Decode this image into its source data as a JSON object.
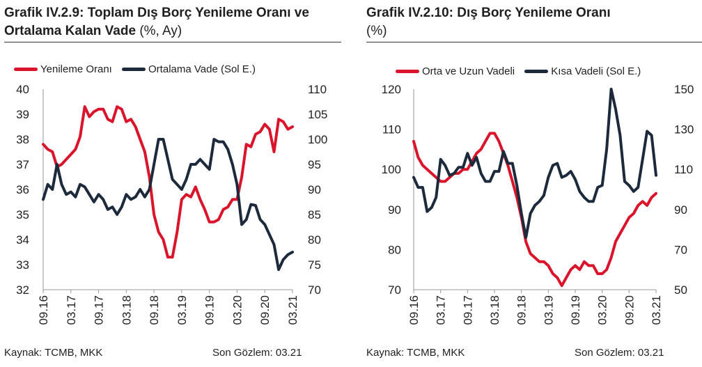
{
  "charts": [
    {
      "title_bold": "Grafik IV.2.9: Toplam Dış Borç Yenileme Oranı ve Ortalama Kalan Vade",
      "title_normal": " (%, Ay)",
      "source": "Kaynak: TCMB, MKK",
      "last_obs": "Son Gözlem: 03.21"
    },
    {
      "title_bold": "Grafik IV.2.10: Dış Borç Yenileme Oranı",
      "title_normal": "(%)",
      "source": "Kaynak: TCMB, MKK",
      "last_obs": "Son Gözlem: 03.21"
    }
  ],
  "chart_data": [
    {
      "type": "line",
      "title": "Grafik IV.2.9: Toplam Dış Borç Yenileme Oranı ve Ortalama Kalan Vade (%, Ay)",
      "x_ticks": [
        "09.16",
        "03.17",
        "09.17",
        "03.18",
        "09.18",
        "03.19",
        "09.19",
        "03.20",
        "09.20",
        "03.21"
      ],
      "grid": false,
      "legend_position": "top",
      "y_left": {
        "min": 32,
        "max": 40,
        "ticks": [
          32,
          33,
          34,
          35,
          36,
          37,
          38,
          39,
          40
        ]
      },
      "y_right": {
        "min": 70,
        "max": 110,
        "ticks": [
          70,
          75,
          80,
          85,
          90,
          95,
          100,
          105,
          110
        ]
      },
      "series": [
        {
          "name": "Yenileme Oranı",
          "axis": "left",
          "color": "#d9142b",
          "values": [
            37.8,
            37.6,
            37.5,
            36.9,
            37.0,
            37.2,
            37.4,
            37.6,
            38.1,
            39.3,
            38.9,
            39.1,
            39.2,
            39.2,
            38.8,
            38.7,
            39.3,
            39.2,
            38.7,
            38.8,
            38.5,
            38.0,
            37.5,
            36.5,
            35.0,
            34.3,
            34.0,
            33.3,
            33.3,
            34.3,
            35.6,
            35.8,
            35.7,
            36.1,
            35.6,
            35.2,
            34.7,
            34.7,
            34.8,
            35.2,
            35.3,
            35.6,
            35.6,
            36.5,
            37.8,
            37.7,
            38.2,
            38.3,
            38.6,
            38.4,
            37.5,
            38.8,
            38.7,
            38.4,
            38.5
          ]
        },
        {
          "name": "Ortalama Vade  (Sol E.)",
          "axis": "right",
          "color": "#1c2a3c",
          "values": [
            88.0,
            91.0,
            90.0,
            95.0,
            91.0,
            89.0,
            89.5,
            88.5,
            91.0,
            90.5,
            89.0,
            87.5,
            89.0,
            88.0,
            86.0,
            86.5,
            85.0,
            86.5,
            89.0,
            88.0,
            88.5,
            90.0,
            88.5,
            90.0,
            95.0,
            100.0,
            100.0,
            96.0,
            92.0,
            91.0,
            90.0,
            92.0,
            95.0,
            95.0,
            96.0,
            95.0,
            94.0,
            100.0,
            99.5,
            99.5,
            98.0,
            95.0,
            91.0,
            83.0,
            84.0,
            87.0,
            86.8,
            84.0,
            83.0,
            81.0,
            79.0,
            74.0,
            76.0,
            77.0,
            77.5
          ]
        }
      ]
    },
    {
      "type": "line",
      "title": "Grafik IV.2.10: Dış Borç Yenileme Oranı (%)",
      "x_ticks": [
        "09.16",
        "03.17",
        "09.17",
        "03.18",
        "09.18",
        "03.19",
        "09.19",
        "03.20",
        "09.20",
        "03.21"
      ],
      "grid": false,
      "legend_position": "top",
      "y_left": {
        "min": 70,
        "max": 120,
        "ticks": [
          70,
          80,
          90,
          100,
          110,
          120
        ]
      },
      "y_right": {
        "min": 50,
        "max": 150,
        "ticks": [
          50,
          70,
          90,
          110,
          130,
          150
        ]
      },
      "series": [
        {
          "name": "Orta ve Uzun Vadeli",
          "axis": "left",
          "color": "#d9142b",
          "values": [
            107,
            103,
            101,
            100,
            99,
            98,
            97,
            97,
            98,
            99,
            99,
            100,
            100,
            102,
            104,
            105,
            107,
            109,
            109,
            107,
            104,
            101,
            97,
            93,
            88,
            82,
            79,
            78,
            77,
            77,
            76,
            74,
            73,
            71,
            73,
            75,
            76,
            75,
            77,
            76,
            76,
            74,
            74,
            75,
            78,
            82,
            84,
            86,
            88,
            89,
            91,
            92,
            91,
            93,
            94
          ]
        },
        {
          "name": "Kısa Vadeli  (Sol E.)",
          "axis": "right",
          "color": "#1c2a3c",
          "values": [
            106,
            101,
            101,
            89,
            91,
            96,
            115,
            112,
            107,
            108,
            111,
            111,
            118,
            112,
            116,
            108,
            104,
            104,
            109,
            109,
            119,
            113,
            113,
            102,
            88,
            76,
            88,
            92,
            94,
            97,
            106,
            112,
            113,
            106,
            107,
            109,
            105,
            99,
            96,
            94,
            94,
            101,
            102,
            120,
            150,
            140,
            127,
            104,
            102,
            99,
            101,
            115,
            129,
            127,
            107
          ]
        }
      ]
    }
  ]
}
